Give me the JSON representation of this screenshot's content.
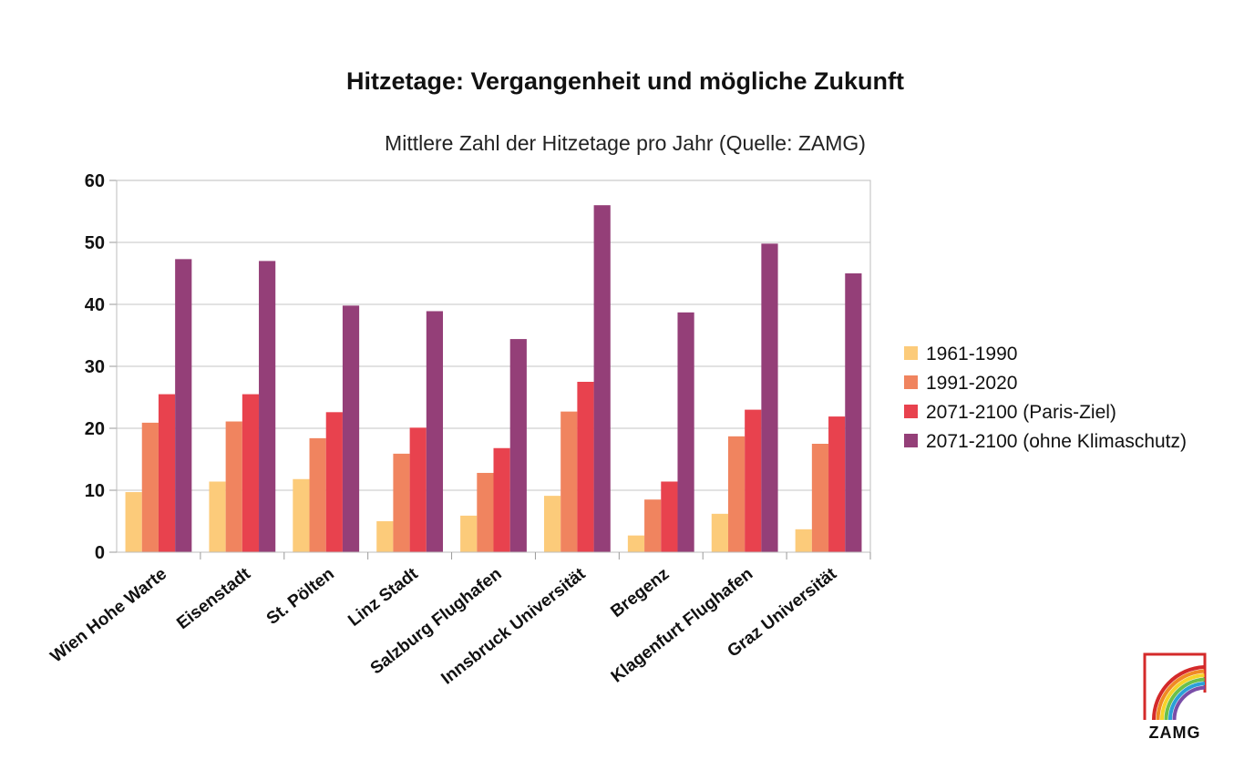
{
  "chart_data": {
    "type": "bar",
    "title": "Hitzetage: Vergangenheit und mögliche Zukunft",
    "subtitle": "Mittlere Zahl der Hitzetage pro Jahr (Quelle: ZAMG)",
    "categories": [
      "Wien Hohe Warte",
      "Eisenstadt",
      "St. Pölten",
      "Linz Stadt",
      "Salzburg Flughafen",
      "Innsbruck Universität",
      "Bregenz",
      "Klagenfurt Flughafen",
      "Graz Universität"
    ],
    "series": [
      {
        "name": "1961-1990",
        "color": "#fccb7a",
        "values": [
          9.7,
          11.4,
          11.8,
          5.0,
          5.9,
          9.1,
          2.7,
          6.2,
          3.7
        ]
      },
      {
        "name": "1991-2020",
        "color": "#f0845f",
        "values": [
          20.9,
          21.1,
          18.4,
          15.9,
          12.8,
          22.7,
          8.5,
          18.7,
          17.5
        ]
      },
      {
        "name": "2071-2100 (Paris-Ziel)",
        "color": "#e8424e",
        "values": [
          25.5,
          25.5,
          22.6,
          20.1,
          16.8,
          27.5,
          11.4,
          23.0,
          21.9
        ]
      },
      {
        "name": "2071-2100 (ohne Klimaschutz)",
        "color": "#943f78",
        "values": [
          47.3,
          47.0,
          39.8,
          38.9,
          34.4,
          56.0,
          38.7,
          49.8,
          45.0
        ]
      }
    ],
    "ylim": [
      0,
      60
    ],
    "yticks": [
      0,
      10,
      20,
      30,
      40,
      50,
      60
    ],
    "grid": true,
    "legend": "right"
  },
  "logo": {
    "text": "ZAMG",
    "colors": [
      "#d42a2a",
      "#f08a24",
      "#f6d32a",
      "#6cc04a",
      "#2aa0d8",
      "#7a4ea8"
    ]
  }
}
